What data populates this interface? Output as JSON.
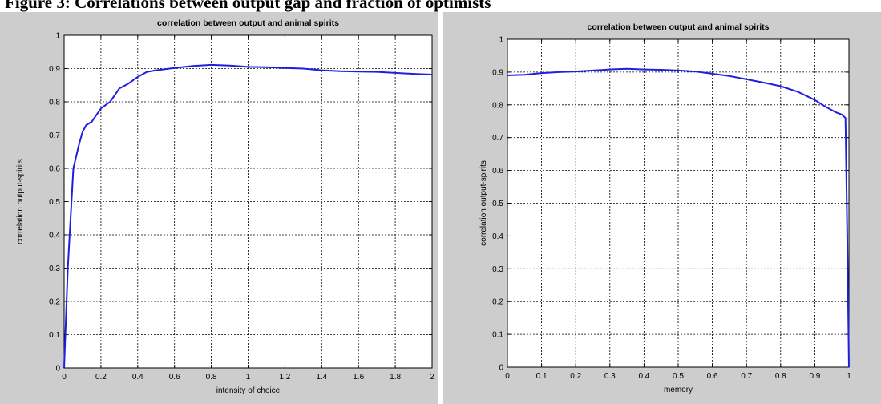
{
  "figure_caption": "Figure 3: Correlations between output gap and fraction of optimists",
  "chart_data": [
    {
      "type": "line",
      "title": "correlation between output and animal spirits",
      "xlabel": "intensity of choice",
      "ylabel": "correlation output-spirits",
      "xlim": [
        0,
        2
      ],
      "ylim": [
        0,
        1
      ],
      "xticks": [
        "0",
        "0.2",
        "0.4",
        "0.6",
        "0.8",
        "1",
        "1.2",
        "1.4",
        "1.6",
        "1.8",
        "2"
      ],
      "yticks": [
        "0",
        "0.1",
        "0.2",
        "0.3",
        "0.4",
        "0.5",
        "0.6",
        "0.7",
        "0.8",
        "0.9",
        "1"
      ],
      "grid": true,
      "line_color": "#1f1fe0",
      "series": [
        {
          "x": [
            0,
            0.02,
            0.05,
            0.08,
            0.1,
            0.12,
            0.15,
            0.2,
            0.25,
            0.3,
            0.35,
            0.4,
            0.45,
            0.5,
            0.6,
            0.7,
            0.8,
            0.9,
            1.0,
            1.1,
            1.2,
            1.3,
            1.4,
            1.5,
            1.6,
            1.7,
            1.8,
            1.9,
            2.0
          ],
          "y": [
            0,
            0.3,
            0.6,
            0.67,
            0.71,
            0.73,
            0.74,
            0.78,
            0.8,
            0.84,
            0.855,
            0.875,
            0.89,
            0.895,
            0.902,
            0.908,
            0.911,
            0.909,
            0.905,
            0.904,
            0.902,
            0.9,
            0.895,
            0.892,
            0.891,
            0.89,
            0.887,
            0.884,
            0.882
          ]
        }
      ]
    },
    {
      "type": "line",
      "title": "correlation between output and animal spirits",
      "xlabel": "memory",
      "ylabel": "correlation output-spirits",
      "xlim": [
        0,
        1
      ],
      "ylim": [
        0,
        1
      ],
      "xticks": [
        "0",
        "0.1",
        "0.2",
        "0.3",
        "0.4",
        "0.5",
        "0.6",
        "0.7",
        "0.8",
        "0.9",
        "1"
      ],
      "yticks": [
        "0",
        "0.1",
        "0.2",
        "0.3",
        "0.4",
        "0.5",
        "0.6",
        "0.7",
        "0.8",
        "0.9",
        "1"
      ],
      "grid": true,
      "line_color": "#1f1fe0",
      "series": [
        {
          "x": [
            0,
            0.05,
            0.1,
            0.15,
            0.2,
            0.25,
            0.3,
            0.35,
            0.4,
            0.45,
            0.5,
            0.55,
            0.6,
            0.65,
            0.7,
            0.75,
            0.8,
            0.85,
            0.9,
            0.93,
            0.96,
            0.98,
            0.99,
            0.995,
            1.0
          ],
          "y": [
            0.89,
            0.892,
            0.897,
            0.9,
            0.902,
            0.905,
            0.908,
            0.91,
            0.908,
            0.907,
            0.905,
            0.902,
            0.895,
            0.888,
            0.878,
            0.868,
            0.857,
            0.84,
            0.815,
            0.795,
            0.778,
            0.77,
            0.76,
            0.4,
            0.0
          ]
        }
      ]
    }
  ]
}
